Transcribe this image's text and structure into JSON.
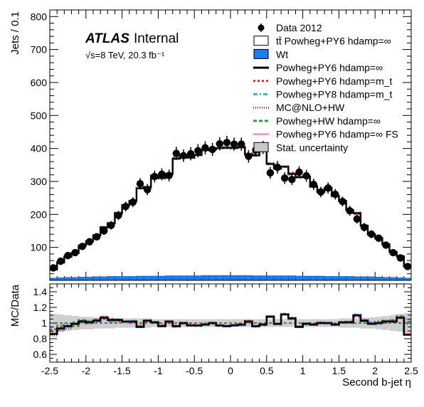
{
  "label": {
    "atlas": "ATLAS",
    "internal": "Internal",
    "energy_lumi": "√s=8 TeV, 20.3 fb⁻¹"
  },
  "legend": [
    {
      "label": "Data 2012",
      "marker": "dot",
      "color": "#000000"
    },
    {
      "label": "tt̄ Powheg+PY6 hdamp=∞",
      "marker": "box",
      "color": "#000000",
      "fill": "#ffffff"
    },
    {
      "label": "Wt",
      "marker": "box",
      "color": "#000000",
      "fill": "#1d7cf2"
    },
    {
      "label": "Powheg+PY6 hdamp=∞",
      "marker": "line",
      "color": "#000000",
      "dash": ""
    },
    {
      "label": "Powheg+PY6 hdamp=m_t",
      "marker": "line",
      "color": "#d62b2b",
      "dash": "3,3"
    },
    {
      "label": "Powheg+PY8 hdamp=m_t",
      "marker": "line",
      "color": "#36bfc2",
      "dash": "6,3,2,3"
    },
    {
      "label": "MC@NLO+HW",
      "marker": "line",
      "color": "#8a2be2",
      "dash": "1,2"
    },
    {
      "label": "Powheg+HW hdamp=∞",
      "marker": "line",
      "color": "#33a02c",
      "dash": "5,3"
    },
    {
      "label": "Powheg+PY6 hdamp=∞ FS",
      "marker": "line",
      "color": "#f39bc4",
      "dash": ""
    },
    {
      "label": "Stat. uncertainty",
      "marker": "box",
      "color": "#000000",
      "fill": "#c8c8c8"
    }
  ],
  "chart_data": [
    {
      "type": "line",
      "xlabel": "Second b-jet η",
      "ylabel": "Jets / 0.1",
      "xlim": [
        -2.5,
        2.5
      ],
      "ylim": [
        0,
        820
      ],
      "xticks": [
        -2.5,
        -2,
        -1.5,
        -1,
        -0.5,
        0,
        0.5,
        1,
        1.5,
        2,
        2.5
      ],
      "xtick_labels": [
        "-2.5",
        "-2",
        "-1.5",
        "-1",
        "-0.5",
        "0",
        "0.5",
        "1",
        "1.5",
        "2",
        "2.5"
      ],
      "yticks": [
        100,
        200,
        300,
        400,
        500,
        600,
        700,
        800
      ],
      "ytick_labels": [
        "100",
        "200",
        "300",
        "400",
        "500",
        "600",
        "700",
        "800"
      ],
      "x_centers": [
        -2.45,
        -2.35,
        -2.25,
        -2.15,
        -2.05,
        -1.95,
        -1.85,
        -1.75,
        -1.65,
        -1.55,
        -1.45,
        -1.35,
        -1.25,
        -1.15,
        -1.05,
        -0.95,
        -0.85,
        -0.75,
        -0.65,
        -0.55,
        -0.45,
        -0.35,
        -0.25,
        -0.15,
        -0.05,
        0.05,
        0.15,
        0.25,
        0.35,
        0.45,
        0.55,
        0.65,
        0.75,
        0.85,
        0.95,
        1.05,
        1.15,
        1.25,
        1.35,
        1.45,
        1.55,
        1.65,
        1.75,
        1.85,
        1.95,
        2.05,
        2.15,
        2.25,
        2.35,
        2.45
      ],
      "series": [
        {
          "name": "Data 2012",
          "style": "points",
          "values": [
            38,
            58,
            75,
            84,
            103,
            117,
            132,
            150,
            167,
            197,
            224,
            237,
            293,
            275,
            315,
            322,
            318,
            385,
            378,
            384,
            393,
            402,
            397,
            414,
            418,
            413,
            413,
            376,
            395,
            403,
            326,
            343,
            310,
            306,
            328,
            317,
            291,
            268,
            280,
            261,
            239,
            211,
            186,
            161,
            140,
            128,
            107,
            84,
            68,
            42
          ],
          "errors": [
            6,
            8,
            9,
            9,
            10,
            11,
            11,
            12,
            13,
            14,
            15,
            15,
            17,
            17,
            18,
            18,
            18,
            20,
            19,
            20,
            20,
            20,
            20,
            20,
            20,
            20,
            20,
            19,
            20,
            20,
            18,
            19,
            18,
            17,
            18,
            18,
            17,
            16,
            17,
            16,
            15,
            15,
            14,
            13,
            12,
            11,
            10,
            9,
            8,
            6
          ]
        },
        {
          "name": "tt̄ Powheg+PY6 hdamp=∞",
          "style": "step",
          "color": "#000000",
          "dash": "",
          "values": [
            33,
            54,
            72,
            83,
            105,
            118,
            136,
            161,
            173,
            204,
            228,
            241,
            279,
            283,
            318,
            310,
            323,
            369,
            378,
            372,
            380,
            395,
            397,
            401,
            402,
            401,
            404,
            382,
            379,
            395,
            353,
            339,
            345,
            323,
            313,
            315,
            284,
            268,
            280,
            256,
            241,
            213,
            204,
            166,
            139,
            128,
            109,
            86,
            73,
            42
          ]
        },
        {
          "name": "Powheg+PY6 hdamp=m_t",
          "style": "step",
          "color": "#d62b2b",
          "dash": "3,3",
          "values": [
            35,
            55,
            72,
            85,
            106,
            117,
            138,
            158,
            175,
            201,
            227,
            239,
            284,
            280,
            316,
            313,
            318,
            373,
            376,
            376,
            382,
            392,
            394,
            403,
            404,
            400,
            406,
            386,
            381,
            391,
            351,
            341,
            343,
            327,
            311,
            313,
            288,
            270,
            279,
            259,
            240,
            216,
            200,
            168,
            141,
            130,
            108,
            87,
            74,
            43
          ]
        },
        {
          "name": "Powheg+PY8 hdamp=m_t",
          "style": "step",
          "color": "#36bfc2",
          "dash": "6,3,2,3",
          "values": [
            36,
            53,
            74,
            84,
            104,
            120,
            135,
            160,
            171,
            206,
            226,
            244,
            281,
            285,
            320,
            308,
            325,
            367,
            381,
            370,
            383,
            397,
            399,
            399,
            405,
            403,
            401,
            380,
            383,
            393,
            356,
            337,
            347,
            320,
            316,
            312,
            286,
            266,
            283,
            254,
            244,
            210,
            206,
            163,
            142,
            126,
            111,
            85,
            75,
            41
          ]
        },
        {
          "name": "MC@NLO+HW",
          "style": "step",
          "color": "#8a2be2",
          "dash": "1,2",
          "values": [
            32,
            52,
            70,
            82,
            103,
            116,
            135,
            163,
            170,
            202,
            229,
            238,
            281,
            281,
            316,
            314,
            320,
            371,
            375,
            374,
            378,
            393,
            398,
            402,
            400,
            404,
            402,
            383,
            377,
            397,
            355,
            337,
            343,
            325,
            312,
            317,
            286,
            270,
            278,
            257,
            239,
            215,
            202,
            167,
            140,
            127,
            107,
            87,
            72,
            44
          ]
        },
        {
          "name": "Powheg+HW hdamp=∞",
          "style": "step",
          "color": "#33a02c",
          "dash": "5,3",
          "values": [
            34,
            56,
            73,
            81,
            107,
            119,
            137,
            159,
            172,
            203,
            229,
            242,
            280,
            282,
            319,
            311,
            321,
            368,
            377,
            373,
            379,
            396,
            396,
            400,
            403,
            402,
            405,
            381,
            380,
            394,
            354,
            338,
            346,
            322,
            314,
            316,
            285,
            267,
            281,
            255,
            242,
            212,
            205,
            165,
            138,
            129,
            110,
            85,
            72,
            43
          ]
        },
        {
          "name": "Powheg+PY6 hdamp=∞ FS",
          "style": "step",
          "color": "#f39bc4",
          "dash": "",
          "values": [
            33,
            54,
            72,
            83,
            105,
            118,
            136,
            161,
            173,
            204,
            228,
            241,
            279,
            283,
            318,
            310,
            323,
            369,
            378,
            372,
            380,
            395,
            397,
            401,
            402,
            401,
            404,
            382,
            379,
            395,
            353,
            339,
            345,
            323,
            313,
            315,
            284,
            268,
            280,
            256,
            241,
            213,
            204,
            166,
            139,
            128,
            109,
            86,
            73,
            42
          ]
        },
        {
          "name": "Wt",
          "style": "filled-step",
          "color": "#1d7cf2",
          "values": [
            7,
            8,
            9,
            9,
            10,
            10,
            11,
            11,
            12,
            12,
            12,
            12,
            13,
            13,
            13,
            13,
            14,
            14,
            14,
            14,
            14,
            15,
            15,
            15,
            15,
            15,
            15,
            15,
            14,
            14,
            14,
            14,
            14,
            14,
            13,
            13,
            13,
            13,
            12,
            12,
            12,
            12,
            11,
            11,
            11,
            10,
            9,
            9,
            8,
            7
          ]
        }
      ]
    },
    {
      "type": "line",
      "xlabel": "Second b-jet η",
      "ylabel": "MC/Data",
      "xlim": [
        -2.5,
        2.5
      ],
      "ylim": [
        0.5,
        1.5
      ],
      "yticks": [
        0.6,
        0.8,
        1,
        1.2,
        1.4
      ],
      "ytick_labels": [
        "0.6",
        "0.8",
        "1",
        "1.2",
        "1.4"
      ],
      "uncertainty_band": [
        0.12,
        0.11,
        0.1,
        0.09,
        0.08,
        0.08,
        0.07,
        0.07,
        0.07,
        0.06,
        0.06,
        0.06,
        0.06,
        0.06,
        0.05,
        0.05,
        0.05,
        0.05,
        0.05,
        0.05,
        0.05,
        0.05,
        0.05,
        0.05,
        0.05,
        0.05,
        0.05,
        0.05,
        0.05,
        0.05,
        0.05,
        0.05,
        0.05,
        0.05,
        0.05,
        0.05,
        0.05,
        0.05,
        0.05,
        0.05,
        0.06,
        0.06,
        0.06,
        0.07,
        0.07,
        0.08,
        0.09,
        0.1,
        0.11,
        0.13
      ],
      "series": [
        {
          "name": "Powheg+PY6 hdamp=∞",
          "color": "#000000",
          "dash": "",
          "values": [
            0.86,
            0.93,
            0.96,
            0.99,
            1.02,
            1.01,
            1.03,
            1.07,
            1.04,
            1.04,
            1.02,
            1.02,
            0.95,
            1.03,
            1.01,
            0.96,
            1.02,
            0.96,
            1.0,
            0.97,
            0.97,
            0.98,
            1.0,
            0.97,
            0.96,
            0.97,
            0.98,
            1.02,
            0.96,
            0.98,
            1.08,
            0.99,
            1.11,
            1.06,
            0.95,
            0.99,
            0.98,
            1.0,
            1.0,
            0.98,
            1.01,
            1.01,
            1.1,
            1.03,
            0.99,
            1.0,
            1.02,
            1.02,
            1.07,
            0.85
          ]
        },
        {
          "name": "Powheg+PY6 hdamp=m_t",
          "color": "#d62b2b",
          "dash": "3,3",
          "values": [
            0.92,
            0.95,
            0.96,
            1.01,
            1.03,
            1.0,
            1.05,
            1.05,
            1.05,
            1.02,
            1.01,
            1.01,
            0.97,
            1.02,
            1.0,
            0.97,
            1.0,
            0.97,
            0.99,
            0.98,
            0.97,
            0.98,
            0.99,
            0.97,
            0.97,
            0.97,
            0.98,
            1.03,
            0.96,
            0.97,
            1.08,
            0.99,
            1.11,
            1.07,
            0.95,
            0.99,
            0.99,
            1.01,
            1.0,
            0.99,
            1.0,
            1.02,
            1.08,
            1.04,
            1.01,
            1.02,
            1.01,
            1.04,
            1.09,
            1.02
          ]
        },
        {
          "name": "Powheg+PY8 hdamp=m_t",
          "color": "#36bfc2",
          "dash": "6,3,2,3",
          "values": [
            0.95,
            0.91,
            0.99,
            1.0,
            1.01,
            1.03,
            1.02,
            1.07,
            1.02,
            1.05,
            1.01,
            1.03,
            0.96,
            1.04,
            1.02,
            0.96,
            1.02,
            0.95,
            1.01,
            0.96,
            0.97,
            0.99,
            1.01,
            0.96,
            0.97,
            0.98,
            0.97,
            1.01,
            0.97,
            0.98,
            1.09,
            0.98,
            1.12,
            1.05,
            0.96,
            0.98,
            0.98,
            0.99,
            1.01,
            0.97,
            1.02,
            1.0,
            1.11,
            1.01,
            1.01,
            0.98,
            1.04,
            1.01,
            1.1,
            0.98
          ]
        },
        {
          "name": "MC@NLO+HW",
          "color": "#8a2be2",
          "dash": "1,2",
          "values": [
            0.84,
            0.9,
            0.93,
            0.98,
            1.0,
            0.99,
            1.02,
            1.09,
            1.02,
            1.03,
            1.02,
            1.0,
            0.96,
            1.02,
            1.0,
            0.98,
            1.01,
            0.96,
            0.99,
            0.97,
            0.96,
            0.98,
            1.0,
            0.97,
            0.96,
            0.98,
            0.97,
            1.02,
            0.95,
            0.99,
            1.09,
            0.98,
            1.11,
            1.06,
            0.95,
            1.0,
            0.98,
            1.01,
            0.99,
            0.98,
            1.0,
            1.02,
            1.09,
            1.04,
            1.0,
            0.99,
            1.0,
            1.04,
            1.06,
            1.05
          ]
        },
        {
          "name": "Powheg+HW hdamp=∞",
          "color": "#33a02c",
          "dash": "5,3",
          "values": [
            0.89,
            0.97,
            0.97,
            0.96,
            1.04,
            1.02,
            1.04,
            1.06,
            1.03,
            1.03,
            1.02,
            1.02,
            0.96,
            1.03,
            1.01,
            0.97,
            1.01,
            0.96,
            1.0,
            0.97,
            0.96,
            0.99,
            1.0,
            0.97,
            0.96,
            0.97,
            0.98,
            1.01,
            0.96,
            0.98,
            1.09,
            0.99,
            1.12,
            1.05,
            0.96,
            1.0,
            0.98,
            1.0,
            1.0,
            0.98,
            1.01,
            1.0,
            1.1,
            1.02,
            0.99,
            1.01,
            1.03,
            1.01,
            1.06,
            1.02
          ]
        },
        {
          "name": "Powheg+PY6 hdamp=∞ FS",
          "color": "#f39bc4",
          "dash": "",
          "values": [
            0.87,
            0.94,
            0.95,
            0.99,
            1.01,
            1.02,
            1.03,
            1.06,
            1.04,
            1.04,
            1.01,
            1.02,
            0.95,
            1.03,
            1.01,
            0.96,
            1.02,
            0.96,
            1.0,
            0.97,
            0.97,
            0.98,
            1.0,
            0.97,
            0.96,
            0.97,
            0.98,
            1.02,
            0.96,
            0.98,
            1.08,
            0.99,
            1.11,
            1.06,
            0.95,
            0.99,
            0.98,
            1.0,
            1.0,
            0.98,
            1.01,
            1.01,
            1.1,
            1.03,
            0.99,
            1.0,
            1.02,
            1.02,
            1.07,
            0.87
          ]
        }
      ]
    }
  ]
}
